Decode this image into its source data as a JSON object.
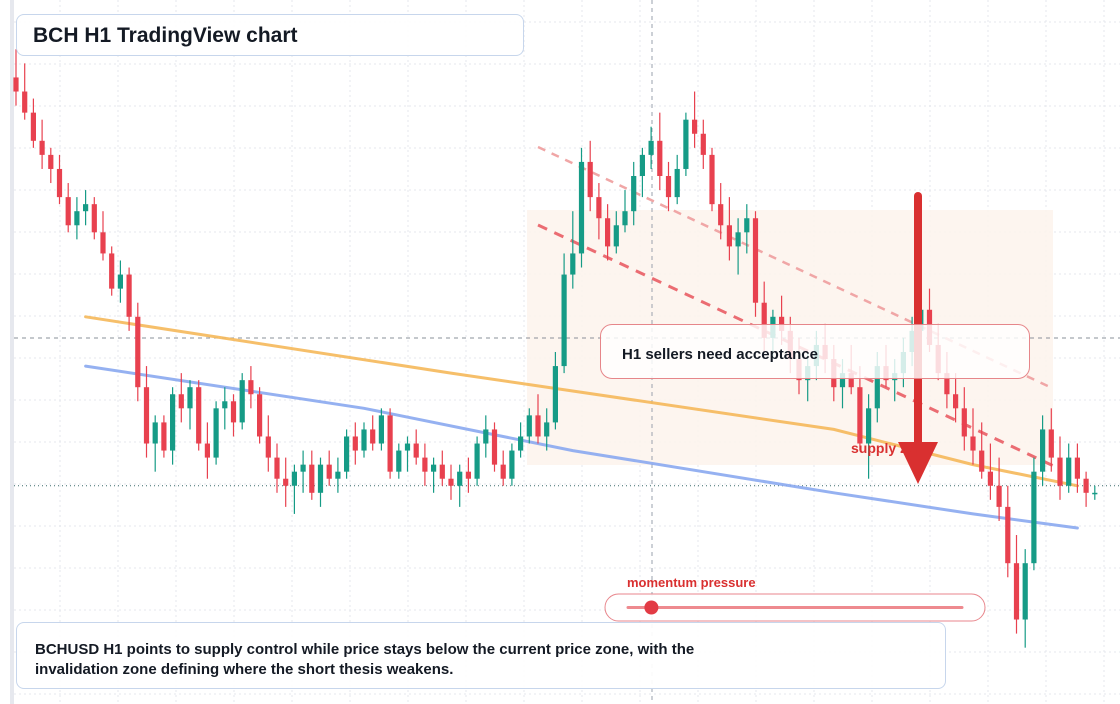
{
  "title": "BCH H1 TradingView chart",
  "callout": {
    "text": "H1 sellers need acceptance"
  },
  "supply_label": "supply zone",
  "momentum": {
    "label": "momentum pressure",
    "level": 0.07
  },
  "note": {
    "line1": "BCHUSD H1 points to supply control while price stays below the current price zone, with the",
    "line2": "invalidation zone defining where the short thesis weakens."
  },
  "colors": {
    "up": "#169b86",
    "down": "#e8414f",
    "ma_fast": "#f5b85a",
    "ma_slow": "#8aa9f0",
    "supply_zone": "#fdf3ec",
    "accent_red": "#d93030",
    "grid": "#e4e7ec"
  },
  "chart_data": {
    "type": "candlestick",
    "symbol": "BCHUSD",
    "timeframe": "H1",
    "ylim": [
      0,
      100
    ],
    "current_price": 31,
    "grid": true,
    "candles": [
      [
        89,
        93,
        85,
        87
      ],
      [
        87,
        91,
        83,
        84
      ],
      [
        84,
        86,
        79,
        80
      ],
      [
        80,
        83,
        76,
        78
      ],
      [
        78,
        79,
        74,
        76
      ],
      [
        76,
        78,
        71,
        72
      ],
      [
        72,
        74,
        67,
        68
      ],
      [
        68,
        72,
        66,
        70
      ],
      [
        70,
        73,
        68,
        71
      ],
      [
        71,
        72,
        66,
        67
      ],
      [
        67,
        70,
        63,
        64
      ],
      [
        64,
        65,
        58,
        59
      ],
      [
        59,
        63,
        57,
        61
      ],
      [
        61,
        62,
        53,
        55
      ],
      [
        55,
        57,
        43,
        45
      ],
      [
        45,
        48,
        35,
        37
      ],
      [
        37,
        41,
        33,
        40
      ],
      [
        40,
        41,
        35,
        36
      ],
      [
        36,
        45,
        34,
        44
      ],
      [
        44,
        47,
        40,
        42
      ],
      [
        42,
        46,
        39,
        45
      ],
      [
        45,
        46,
        36,
        37
      ],
      [
        37,
        40,
        32,
        35
      ],
      [
        35,
        43,
        34,
        42
      ],
      [
        42,
        45,
        39,
        43
      ],
      [
        43,
        44,
        38,
        40
      ],
      [
        40,
        47,
        39,
        46
      ],
      [
        46,
        48,
        42,
        44
      ],
      [
        44,
        45,
        37,
        38
      ],
      [
        38,
        41,
        33,
        35
      ],
      [
        35,
        37,
        30,
        32
      ],
      [
        32,
        35,
        28,
        31
      ],
      [
        31,
        34,
        27,
        33
      ],
      [
        33,
        36,
        30,
        34
      ],
      [
        34,
        36,
        29,
        30
      ],
      [
        30,
        35,
        28,
        34
      ],
      [
        34,
        36,
        31,
        32
      ],
      [
        32,
        35,
        30,
        33
      ],
      [
        33,
        39,
        32,
        38
      ],
      [
        38,
        40,
        34,
        36
      ],
      [
        36,
        40,
        35,
        39
      ],
      [
        39,
        41,
        36,
        37
      ],
      [
        37,
        42,
        36,
        41
      ],
      [
        41,
        42,
        32,
        33
      ],
      [
        33,
        37,
        32,
        36
      ],
      [
        36,
        38,
        33,
        37
      ],
      [
        37,
        39,
        34,
        35
      ],
      [
        35,
        37,
        31,
        33
      ],
      [
        33,
        35,
        30,
        34
      ],
      [
        34,
        36,
        31,
        32
      ],
      [
        32,
        34,
        29,
        31
      ],
      [
        31,
        34,
        28,
        33
      ],
      [
        33,
        35,
        30,
        32
      ],
      [
        32,
        38,
        31,
        37
      ],
      [
        37,
        41,
        35,
        39
      ],
      [
        39,
        40,
        33,
        34
      ],
      [
        34,
        36,
        31,
        32
      ],
      [
        32,
        37,
        31,
        36
      ],
      [
        36,
        40,
        35,
        38
      ],
      [
        38,
        42,
        37,
        41
      ],
      [
        41,
        44,
        37,
        38
      ],
      [
        38,
        42,
        36,
        40
      ],
      [
        40,
        50,
        39,
        48
      ],
      [
        48,
        64,
        47,
        61
      ],
      [
        61,
        70,
        59,
        64
      ],
      [
        64,
        79,
        62,
        77
      ],
      [
        77,
        80,
        70,
        72
      ],
      [
        72,
        74,
        66,
        69
      ],
      [
        69,
        71,
        63,
        65
      ],
      [
        65,
        70,
        64,
        68
      ],
      [
        68,
        73,
        67,
        70
      ],
      [
        70,
        77,
        68,
        75
      ],
      [
        75,
        79,
        72,
        78
      ],
      [
        78,
        82,
        76,
        80
      ],
      [
        80,
        84,
        73,
        75
      ],
      [
        75,
        77,
        70,
        72
      ],
      [
        72,
        78,
        71,
        76
      ],
      [
        76,
        84,
        75,
        83
      ],
      [
        83,
        87,
        79,
        81
      ],
      [
        81,
        83,
        76,
        78
      ],
      [
        78,
        79,
        70,
        71
      ],
      [
        71,
        74,
        66,
        68
      ],
      [
        68,
        72,
        63,
        65
      ],
      [
        65,
        69,
        61,
        67
      ],
      [
        67,
        71,
        64,
        69
      ],
      [
        69,
        70,
        55,
        57
      ],
      [
        57,
        60,
        50,
        52
      ],
      [
        52,
        56,
        49,
        55
      ],
      [
        55,
        58,
        51,
        53
      ],
      [
        53,
        55,
        47,
        49
      ],
      [
        49,
        52,
        44,
        46
      ],
      [
        46,
        50,
        43,
        48
      ],
      [
        48,
        53,
        46,
        51
      ],
      [
        51,
        54,
        47,
        49
      ],
      [
        49,
        51,
        43,
        45
      ],
      [
        45,
        49,
        42,
        47
      ],
      [
        47,
        51,
        44,
        45
      ],
      [
        45,
        48,
        36,
        37
      ],
      [
        37,
        44,
        32,
        42
      ],
      [
        42,
        50,
        40,
        48
      ],
      [
        48,
        51,
        45,
        46
      ],
      [
        46,
        49,
        43,
        47
      ],
      [
        47,
        52,
        45,
        50
      ],
      [
        50,
        55,
        48,
        53
      ],
      [
        53,
        58,
        51,
        56
      ],
      [
        56,
        59,
        50,
        51
      ],
      [
        51,
        54,
        46,
        47
      ],
      [
        47,
        50,
        42,
        44
      ],
      [
        44,
        47,
        40,
        42
      ],
      [
        42,
        45,
        36,
        38
      ],
      [
        38,
        42,
        34,
        36
      ],
      [
        36,
        40,
        32,
        33
      ],
      [
        33,
        37,
        29,
        31
      ],
      [
        31,
        35,
        26,
        28
      ],
      [
        28,
        31,
        18,
        20
      ],
      [
        20,
        24,
        10,
        12
      ],
      [
        12,
        22,
        8,
        20
      ],
      [
        20,
        35,
        19,
        33
      ],
      [
        33,
        41,
        31,
        39
      ],
      [
        39,
        42,
        33,
        35
      ],
      [
        35,
        38,
        29,
        31
      ],
      [
        31,
        37,
        30,
        35
      ],
      [
        35,
        37,
        30,
        32
      ],
      [
        32,
        33,
        28,
        30
      ],
      [
        30,
        31,
        29,
        30
      ]
    ],
    "moving_averages": [
      {
        "points": [
          [
            8,
            55
          ],
          [
            50,
            47
          ],
          [
            94,
            39
          ],
          [
            110,
            34
          ],
          [
            122,
            31
          ]
        ]
      },
      {
        "points": [
          [
            8,
            48
          ],
          [
            40,
            42
          ],
          [
            64,
            36
          ],
          [
            94,
            30
          ],
          [
            110,
            27
          ],
          [
            122,
            25
          ]
        ]
      }
    ]
  }
}
